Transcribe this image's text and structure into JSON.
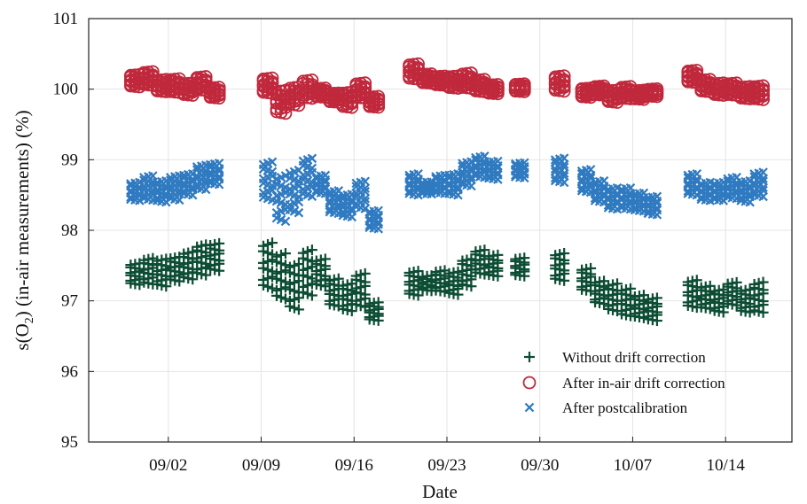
{
  "chart_data": {
    "type": "scatter",
    "xlabel": "Date",
    "ylabel_parts": [
      "s(O",
      "2",
      ") (in-air measurements) (%)"
    ],
    "ylim": [
      95,
      101
    ],
    "yticks": [
      "95",
      "96",
      "97",
      "98",
      "99",
      "100",
      "101"
    ],
    "xlim": [
      "2024-08-27",
      "2024-10-19"
    ],
    "xticks": [
      "09/02",
      "09/09",
      "09/16",
      "09/23",
      "09/30",
      "10/07",
      "10/14"
    ],
    "grid": true,
    "legend_position": "lower-right",
    "series": [
      {
        "name": "Without drift correction",
        "marker": "plus",
        "color": "#0d4d34",
        "daily": [
          {
            "day": "2024-08-30",
            "center": 97.38,
            "spread": 0.14
          },
          {
            "day": "2024-08-31",
            "center": 97.42,
            "spread": 0.17
          },
          {
            "day": "2024-09-01",
            "center": 97.4,
            "spread": 0.18
          },
          {
            "day": "2024-09-02",
            "center": 97.45,
            "spread": 0.16
          },
          {
            "day": "2024-09-03",
            "center": 97.5,
            "spread": 0.18
          },
          {
            "day": "2024-09-04",
            "center": 97.58,
            "spread": 0.2
          },
          {
            "day": "2024-09-05",
            "center": 97.62,
            "spread": 0.18
          },
          {
            "day": "2024-09-09",
            "center": 97.5,
            "spread": 0.3
          },
          {
            "day": "2024-09-10",
            "center": 97.35,
            "spread": 0.3
          },
          {
            "day": "2024-09-11",
            "center": 97.2,
            "spread": 0.3
          },
          {
            "day": "2024-09-12",
            "center": 97.4,
            "spread": 0.3
          },
          {
            "day": "2024-09-13",
            "center": 97.4,
            "spread": 0.18
          },
          {
            "day": "2024-09-14",
            "center": 97.12,
            "spread": 0.18
          },
          {
            "day": "2024-09-15",
            "center": 97.05,
            "spread": 0.18
          },
          {
            "day": "2024-09-16",
            "center": 97.15,
            "spread": 0.22
          },
          {
            "day": "2024-09-17",
            "center": 96.85,
            "spread": 0.12
          },
          {
            "day": "2024-09-20",
            "center": 97.25,
            "spread": 0.16
          },
          {
            "day": "2024-09-21",
            "center": 97.25,
            "spread": 0.1
          },
          {
            "day": "2024-09-22",
            "center": 97.28,
            "spread": 0.14
          },
          {
            "day": "2024-09-23",
            "center": 97.25,
            "spread": 0.15
          },
          {
            "day": "2024-09-24",
            "center": 97.4,
            "spread": 0.18
          },
          {
            "day": "2024-09-25",
            "center": 97.55,
            "spread": 0.16
          },
          {
            "day": "2024-09-26",
            "center": 97.5,
            "spread": 0.14
          },
          {
            "day": "2024-09-28",
            "center": 97.48,
            "spread": 0.12
          },
          {
            "day": "2024-10-01",
            "center": 97.48,
            "spread": 0.18
          },
          {
            "day": "2024-10-03",
            "center": 97.3,
            "spread": 0.15
          },
          {
            "day": "2024-10-04",
            "center": 97.12,
            "spread": 0.15
          },
          {
            "day": "2024-10-05",
            "center": 97.05,
            "spread": 0.18
          },
          {
            "day": "2024-10-06",
            "center": 96.98,
            "spread": 0.18
          },
          {
            "day": "2024-10-07",
            "center": 96.92,
            "spread": 0.15
          },
          {
            "day": "2024-10-08",
            "center": 96.88,
            "spread": 0.15
          },
          {
            "day": "2024-10-11",
            "center": 97.1,
            "spread": 0.18
          },
          {
            "day": "2024-10-12",
            "center": 97.05,
            "spread": 0.15
          },
          {
            "day": "2024-10-13",
            "center": 97.0,
            "spread": 0.15
          },
          {
            "day": "2024-10-14",
            "center": 97.1,
            "spread": 0.15
          },
          {
            "day": "2024-10-15",
            "center": 97.0,
            "spread": 0.15
          },
          {
            "day": "2024-10-16",
            "center": 97.05,
            "spread": 0.2
          }
        ]
      },
      {
        "name": "After in-air drift correction",
        "marker": "circle",
        "color": "#c0283c",
        "daily": [
          {
            "day": "2024-08-30",
            "center": 100.12,
            "spread": 0.08
          },
          {
            "day": "2024-08-31",
            "center": 100.15,
            "spread": 0.09
          },
          {
            "day": "2024-09-01",
            "center": 100.05,
            "spread": 0.08
          },
          {
            "day": "2024-09-02",
            "center": 100.05,
            "spread": 0.09
          },
          {
            "day": "2024-09-03",
            "center": 100.0,
            "spread": 0.08
          },
          {
            "day": "2024-09-04",
            "center": 100.08,
            "spread": 0.09
          },
          {
            "day": "2024-09-05",
            "center": 99.95,
            "spread": 0.07
          },
          {
            "day": "2024-09-09",
            "center": 100.05,
            "spread": 0.1
          },
          {
            "day": "2024-09-10",
            "center": 99.82,
            "spread": 0.15
          },
          {
            "day": "2024-09-11",
            "center": 99.9,
            "spread": 0.12
          },
          {
            "day": "2024-09-12",
            "center": 100.0,
            "spread": 0.12
          },
          {
            "day": "2024-09-13",
            "center": 99.95,
            "spread": 0.06
          },
          {
            "day": "2024-09-14",
            "center": 99.88,
            "spread": 0.06
          },
          {
            "day": "2024-09-15",
            "center": 99.85,
            "spread": 0.1
          },
          {
            "day": "2024-09-16",
            "center": 99.98,
            "spread": 0.1
          },
          {
            "day": "2024-09-17",
            "center": 99.82,
            "spread": 0.07
          },
          {
            "day": "2024-09-20",
            "center": 100.25,
            "spread": 0.1
          },
          {
            "day": "2024-09-21",
            "center": 100.15,
            "spread": 0.06
          },
          {
            "day": "2024-09-22",
            "center": 100.12,
            "spread": 0.06
          },
          {
            "day": "2024-09-23",
            "center": 100.1,
            "spread": 0.08
          },
          {
            "day": "2024-09-24",
            "center": 100.12,
            "spread": 0.1
          },
          {
            "day": "2024-09-25",
            "center": 100.05,
            "spread": 0.08
          },
          {
            "day": "2024-09-26",
            "center": 100.0,
            "spread": 0.06
          },
          {
            "day": "2024-09-28",
            "center": 100.02,
            "spread": 0.05
          },
          {
            "day": "2024-10-01",
            "center": 100.08,
            "spread": 0.1
          },
          {
            "day": "2024-10-03",
            "center": 99.95,
            "spread": 0.06
          },
          {
            "day": "2024-10-04",
            "center": 99.98,
            "spread": 0.06
          },
          {
            "day": "2024-10-05",
            "center": 99.9,
            "spread": 0.08
          },
          {
            "day": "2024-10-06",
            "center": 99.95,
            "spread": 0.08
          },
          {
            "day": "2024-10-07",
            "center": 99.92,
            "spread": 0.06
          },
          {
            "day": "2024-10-08",
            "center": 99.95,
            "spread": 0.05
          },
          {
            "day": "2024-10-11",
            "center": 100.18,
            "spread": 0.08
          },
          {
            "day": "2024-10-12",
            "center": 100.05,
            "spread": 0.08
          },
          {
            "day": "2024-10-13",
            "center": 100.0,
            "spread": 0.08
          },
          {
            "day": "2024-10-14",
            "center": 100.0,
            "spread": 0.08
          },
          {
            "day": "2024-10-15",
            "center": 99.95,
            "spread": 0.08
          },
          {
            "day": "2024-10-16",
            "center": 99.95,
            "spread": 0.09
          }
        ]
      },
      {
        "name": "After postcalibration",
        "marker": "x",
        "color": "#2f7ac0",
        "daily": [
          {
            "day": "2024-08-30",
            "center": 98.55,
            "spread": 0.12
          },
          {
            "day": "2024-08-31",
            "center": 98.6,
            "spread": 0.16
          },
          {
            "day": "2024-09-01",
            "center": 98.55,
            "spread": 0.14
          },
          {
            "day": "2024-09-02",
            "center": 98.6,
            "spread": 0.16
          },
          {
            "day": "2024-09-03",
            "center": 98.65,
            "spread": 0.14
          },
          {
            "day": "2024-09-04",
            "center": 98.75,
            "spread": 0.16
          },
          {
            "day": "2024-09-05",
            "center": 98.8,
            "spread": 0.14
          },
          {
            "day": "2024-09-09",
            "center": 98.7,
            "spread": 0.25
          },
          {
            "day": "2024-09-10",
            "center": 98.45,
            "spread": 0.3
          },
          {
            "day": "2024-09-11",
            "center": 98.55,
            "spread": 0.28
          },
          {
            "day": "2024-09-12",
            "center": 98.75,
            "spread": 0.25
          },
          {
            "day": "2024-09-13",
            "center": 98.65,
            "spread": 0.12
          },
          {
            "day": "2024-09-14",
            "center": 98.4,
            "spread": 0.15
          },
          {
            "day": "2024-09-15",
            "center": 98.35,
            "spread": 0.15
          },
          {
            "day": "2024-09-16",
            "center": 98.5,
            "spread": 0.18
          },
          {
            "day": "2024-09-17",
            "center": 98.15,
            "spread": 0.12
          },
          {
            "day": "2024-09-20",
            "center": 98.65,
            "spread": 0.14
          },
          {
            "day": "2024-09-21",
            "center": 98.6,
            "spread": 0.08
          },
          {
            "day": "2024-09-22",
            "center": 98.65,
            "spread": 0.12
          },
          {
            "day": "2024-09-23",
            "center": 98.65,
            "spread": 0.14
          },
          {
            "day": "2024-09-24",
            "center": 98.8,
            "spread": 0.16
          },
          {
            "day": "2024-09-25",
            "center": 98.9,
            "spread": 0.14
          },
          {
            "day": "2024-09-26",
            "center": 98.85,
            "spread": 0.12
          },
          {
            "day": "2024-09-28",
            "center": 98.85,
            "spread": 0.1
          },
          {
            "day": "2024-10-01",
            "center": 98.85,
            "spread": 0.16
          },
          {
            "day": "2024-10-03",
            "center": 98.7,
            "spread": 0.15
          },
          {
            "day": "2024-10-04",
            "center": 98.55,
            "spread": 0.14
          },
          {
            "day": "2024-10-05",
            "center": 98.45,
            "spread": 0.14
          },
          {
            "day": "2024-10-06",
            "center": 98.45,
            "spread": 0.14
          },
          {
            "day": "2024-10-07",
            "center": 98.4,
            "spread": 0.12
          },
          {
            "day": "2024-10-08",
            "center": 98.35,
            "spread": 0.12
          },
          {
            "day": "2024-10-11",
            "center": 98.65,
            "spread": 0.14
          },
          {
            "day": "2024-10-12",
            "center": 98.55,
            "spread": 0.12
          },
          {
            "day": "2024-10-13",
            "center": 98.55,
            "spread": 0.12
          },
          {
            "day": "2024-10-14",
            "center": 98.6,
            "spread": 0.14
          },
          {
            "day": "2024-10-15",
            "center": 98.55,
            "spread": 0.14
          },
          {
            "day": "2024-10-16",
            "center": 98.65,
            "spread": 0.16
          }
        ]
      }
    ]
  }
}
